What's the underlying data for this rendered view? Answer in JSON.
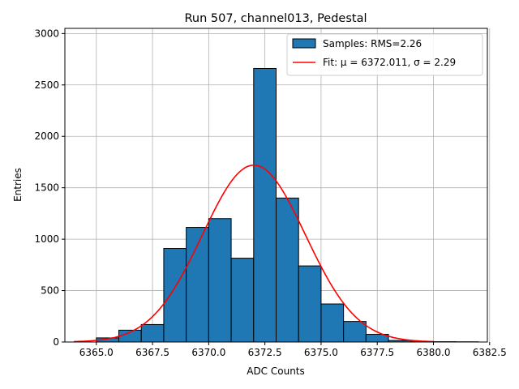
{
  "chart_data": {
    "type": "bar",
    "title": "Run 507, channel013, Pedestal",
    "xlabel": "ADC Counts",
    "ylabel": "Entries",
    "xlim": [
      6363.6,
      6382.4
    ],
    "ylim": [
      0,
      3050
    ],
    "xticks": [
      6365.0,
      6367.5,
      6370.0,
      6372.5,
      6375.0,
      6377.5,
      6380.0,
      6382.5
    ],
    "xtick_labels": [
      "6365.0",
      "6367.5",
      "6370.0",
      "6372.5",
      "6375.0",
      "6377.5",
      "6380.0",
      "6382.5"
    ],
    "yticks": [
      0,
      500,
      1000,
      1500,
      2000,
      2500,
      3000
    ],
    "ytick_labels": [
      "0",
      "500",
      "1000",
      "1500",
      "2000",
      "2500",
      "3000"
    ],
    "grid": true,
    "legend_position": "top-right",
    "histogram": {
      "name": "Samples: RMS=2.26",
      "color": "#1f77b4",
      "edge_color": "#000000",
      "bin_edges": [
        6365,
        6366,
        6367,
        6368,
        6369,
        6370,
        6371,
        6372,
        6373,
        6374,
        6375,
        6376,
        6377,
        6378,
        6379,
        6380,
        6381,
        6382
      ],
      "counts": [
        40,
        115,
        170,
        910,
        1115,
        1200,
        815,
        2660,
        1400,
        740,
        370,
        200,
        75,
        15,
        5,
        3,
        2
      ]
    },
    "fit": {
      "name": "Fit: μ = 6372.011, σ = 2.29",
      "color": "#ff0000",
      "mu": 6372.011,
      "sigma": 2.29,
      "amplitude": 1720,
      "x_range": [
        6364,
        6380
      ]
    }
  }
}
